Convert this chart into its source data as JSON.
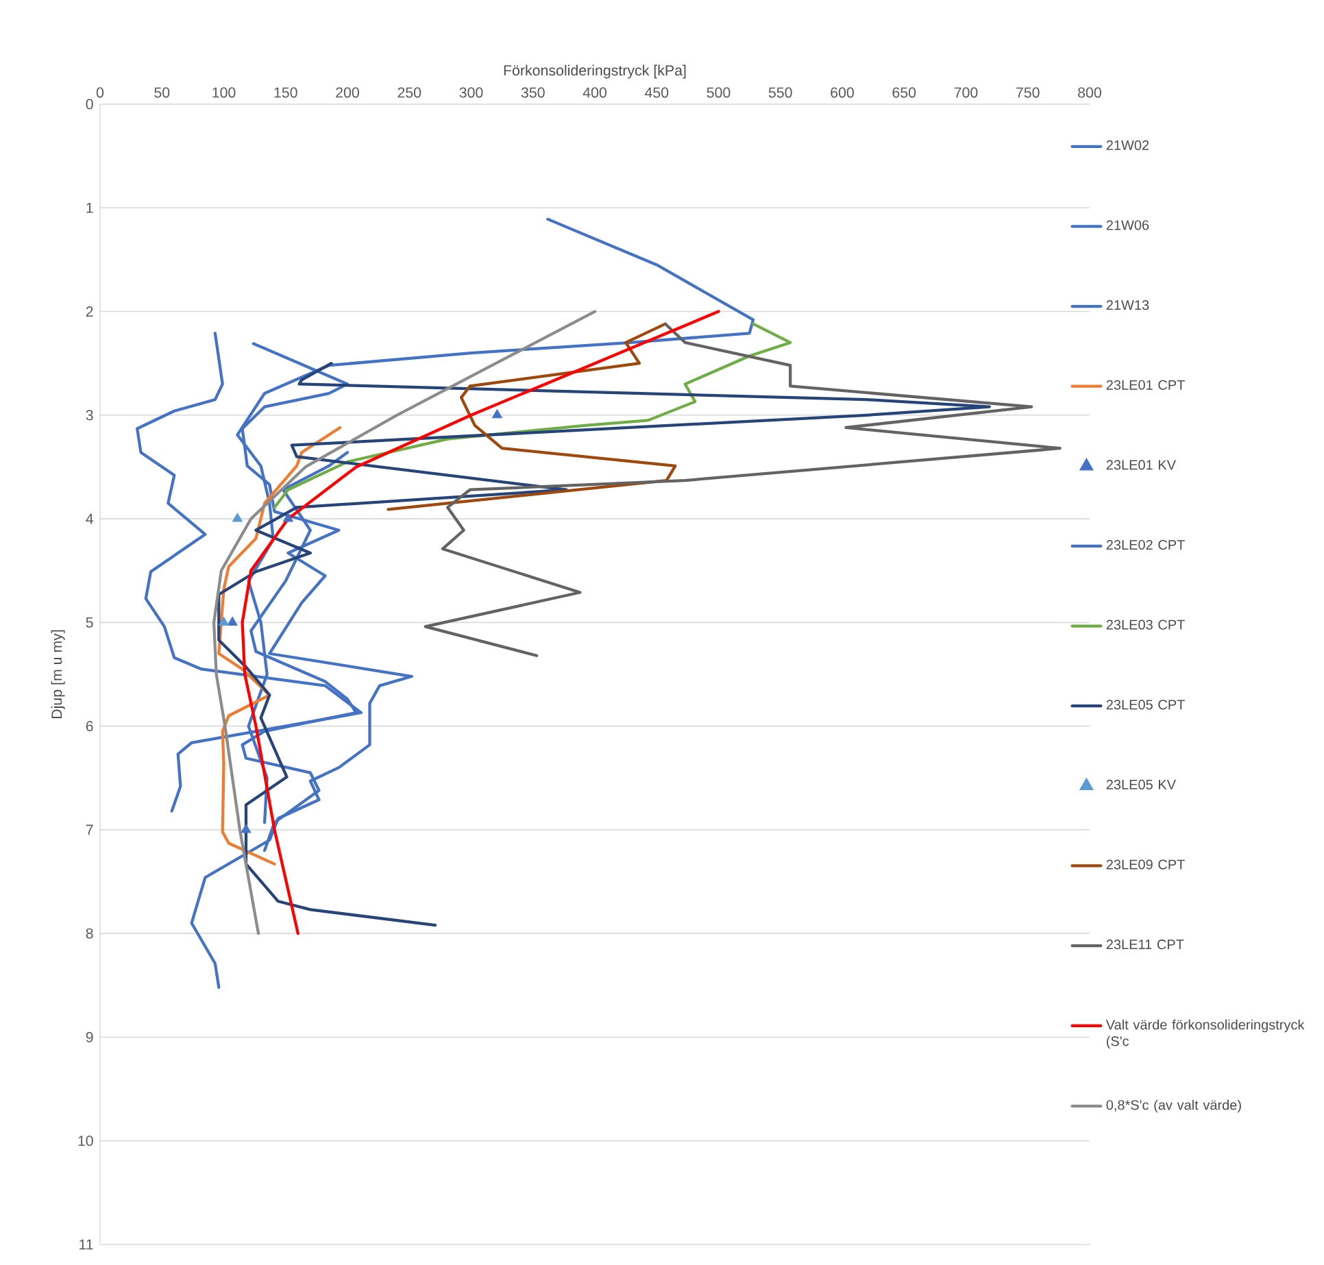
{
  "chart_data": {
    "type": "line",
    "xlabel": "Förkonsolideringstryck [kPa]",
    "ylabel": "Djup [m u my]",
    "xlim": [
      0,
      800
    ],
    "xticks": [
      0,
      50,
      100,
      150,
      200,
      250,
      300,
      350,
      400,
      450,
      500,
      550,
      600,
      650,
      700,
      750,
      800
    ],
    "ylim": [
      11,
      0
    ],
    "yticks": [
      0,
      1,
      2,
      3,
      4,
      5,
      6,
      7,
      8,
      9,
      10,
      11
    ],
    "grid": "y",
    "legend": "right",
    "marker": "none",
    "series": [
      {
        "name": "21W02",
        "color": "#4472c4",
        "x": [
          362,
          450,
          528,
          525,
          429,
          300,
          185,
          133,
          111,
          130,
          137,
          140,
          120,
          130,
          135,
          120,
          135,
          133
        ],
        "values": [
          1.11,
          1.55,
          2.08,
          2.21,
          2.3,
          2.4,
          2.52,
          2.79,
          3.19,
          3.49,
          3.85,
          4.2,
          4.6,
          5.0,
          5.5,
          6.0,
          6.5,
          6.93
        ]
      },
      {
        "name": "21W06",
        "color": "#4472c4",
        "x": [
          124,
          200,
          185,
          133,
          115,
          119,
          137,
          141,
          193,
          152,
          182,
          163,
          137,
          252,
          226,
          218,
          218,
          193,
          170,
          177,
          144,
          137,
          85,
          74,
          93,
          96
        ],
        "values": [
          2.31,
          2.7,
          2.79,
          2.92,
          3.13,
          3.49,
          3.67,
          3.93,
          4.11,
          4.33,
          4.55,
          4.81,
          5.3,
          5.52,
          5.61,
          5.78,
          6.18,
          6.4,
          6.53,
          6.71,
          6.89,
          7.1,
          7.46,
          7.9,
          8.29,
          8.52
        ]
      },
      {
        "name": "21W13",
        "color": "#4472c4",
        "x": [
          93,
          99,
          93,
          60,
          30,
          33,
          60,
          55,
          85,
          41,
          37,
          52,
          60,
          82,
          182,
          211,
          150,
          74,
          63,
          65,
          58
        ],
        "values": [
          2.21,
          2.7,
          2.85,
          2.96,
          3.13,
          3.36,
          3.58,
          3.85,
          4.15,
          4.51,
          4.77,
          5.04,
          5.34,
          5.45,
          5.61,
          5.87,
          6.0,
          6.16,
          6.27,
          6.58,
          6.82
        ]
      },
      {
        "name": "23LE01 CPT",
        "color": "#ed7d31",
        "x": [
          194,
          163,
          159,
          133,
          126,
          104,
          100,
          96,
          115,
          137,
          104,
          99,
          100,
          99,
          104,
          141
        ],
        "values": [
          3.12,
          3.36,
          3.49,
          3.85,
          4.19,
          4.46,
          4.68,
          5.3,
          5.45,
          5.7,
          5.9,
          6.05,
          6.36,
          7.02,
          7.13,
          7.33
        ]
      },
      {
        "name": "23LE01 KV",
        "type": "scatter",
        "marker": "triangle",
        "color": "#4472c4",
        "x": [
          321,
          152,
          107,
          118
        ],
        "values": [
          3.0,
          4.0,
          5.0,
          7.0
        ]
      },
      {
        "name": "23LE02 CPT",
        "color": "#4472c4",
        "x": [
          200,
          185,
          148,
          170,
          150,
          122,
          126,
          182,
          200,
          207,
          133,
          115,
          118,
          170,
          177,
          141,
          133
        ],
        "values": [
          3.36,
          3.49,
          3.72,
          4.11,
          4.6,
          5.08,
          5.28,
          5.57,
          5.74,
          5.87,
          6.05,
          6.18,
          6.31,
          6.45,
          6.62,
          6.93,
          7.2
        ]
      },
      {
        "name": "23LE03 CPT",
        "color": "#70ad47",
        "x": [
          528,
          558,
          525,
          473,
          481,
          443,
          392,
          281,
          200,
          152,
          141
        ],
        "values": [
          2.12,
          2.3,
          2.43,
          2.7,
          2.87,
          3.05,
          3.1,
          3.23,
          3.45,
          3.72,
          3.89
        ]
      },
      {
        "name": "23LE05 CPT",
        "color": "#264478",
        "x": [
          187,
          163,
          161,
          620,
          719,
          620,
          155,
          159,
          377,
          159,
          126,
          170,
          126,
          96,
          96,
          118,
          137,
          130,
          148,
          151,
          118,
          118,
          144,
          170,
          271
        ],
        "values": [
          2.5,
          2.66,
          2.7,
          2.85,
          2.92,
          3.0,
          3.29,
          3.4,
          3.72,
          3.89,
          4.11,
          4.33,
          4.51,
          4.73,
          5.17,
          5.43,
          5.7,
          5.92,
          6.41,
          6.49,
          6.76,
          7.33,
          7.69,
          7.77,
          7.92
        ]
      },
      {
        "name": "23LE05 KV",
        "type": "scatter",
        "marker": "triangle",
        "color": "#5b9bd5",
        "x": [
          111,
          100
        ],
        "values": [
          4.0,
          5.0
        ]
      },
      {
        "name": "23LE09 CPT",
        "color": "#9e480e",
        "x": [
          457,
          425,
          436,
          299,
          292,
          303,
          325,
          465,
          458,
          233
        ],
        "values": [
          2.12,
          2.3,
          2.5,
          2.72,
          2.83,
          3.1,
          3.32,
          3.49,
          3.63,
          3.91
        ]
      },
      {
        "name": "23LE11 CPT",
        "color": "#636363",
        "x": [
          457,
          473,
          558,
          558,
          753,
          603,
          776,
          473,
          299,
          281,
          294,
          277,
          388,
          263,
          353
        ],
        "values": [
          2.12,
          2.3,
          2.52,
          2.72,
          2.92,
          3.12,
          3.32,
          3.63,
          3.72,
          3.89,
          4.11,
          4.29,
          4.71,
          5.04,
          5.32
        ]
      },
      {
        "name": "Valt värde förkonsolideringstryck (S'c",
        "color": "#ff0000",
        "x": [
          500,
          400,
          300,
          207,
          152,
          122,
          115,
          117,
          126,
          141,
          160
        ],
        "values": [
          2,
          2.5,
          3,
          3.5,
          4,
          4.5,
          5,
          5.5,
          6,
          7,
          8
        ]
      },
      {
        "name": "0,8*S'c (av valt värde)",
        "color": "#8c8c8c",
        "x": [
          400,
          320,
          240,
          166,
          122,
          98,
          92,
          94,
          101,
          113,
          128
        ],
        "values": [
          2,
          2.5,
          3,
          3.5,
          4,
          4.5,
          5,
          5.5,
          6,
          7,
          8
        ]
      }
    ]
  }
}
